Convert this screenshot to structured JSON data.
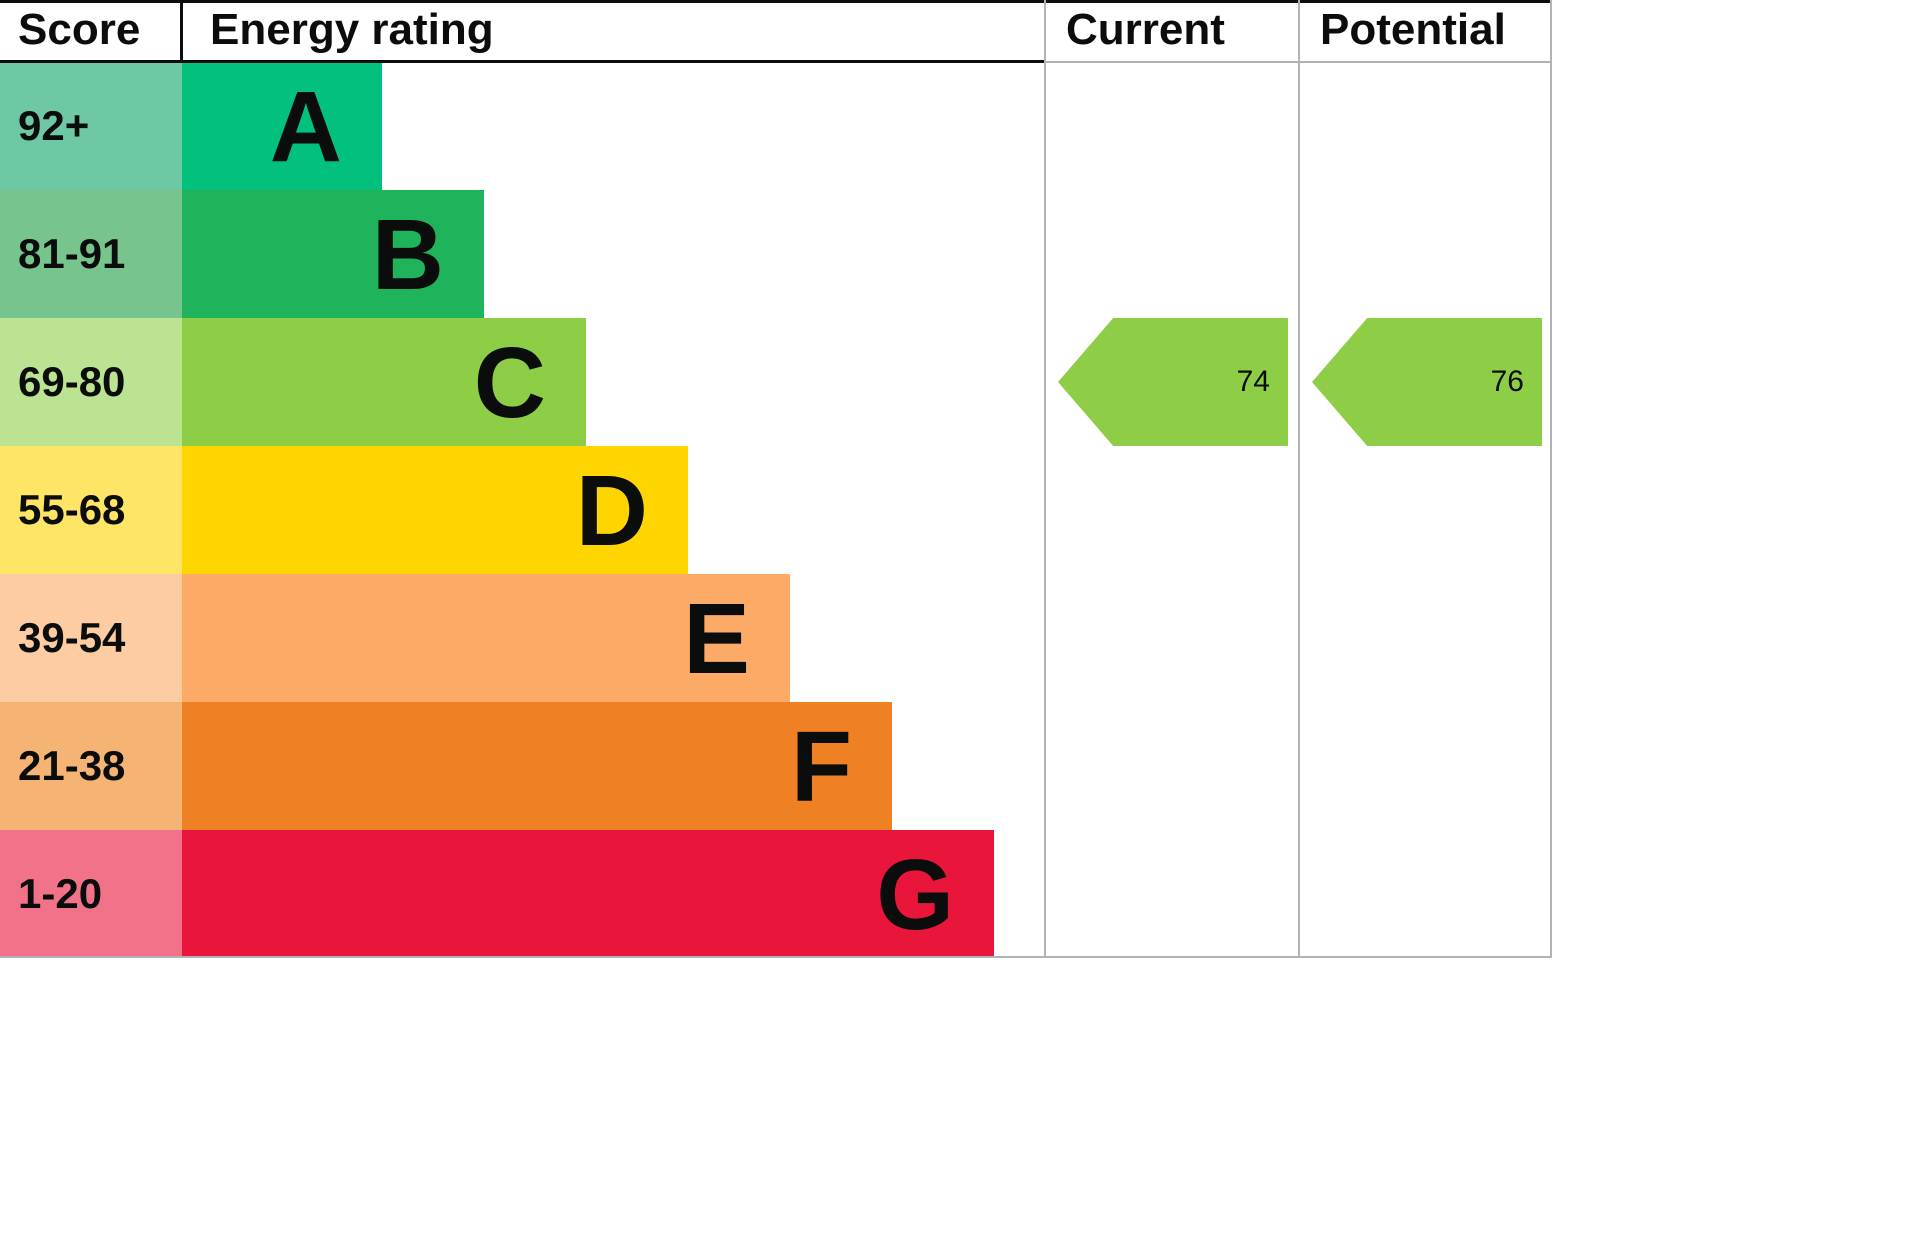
{
  "header": {
    "score": "Score",
    "energy_rating": "Energy rating",
    "current": "Current",
    "potential": "Potential"
  },
  "bands": [
    {
      "range": "92+",
      "letter": "A",
      "color": "#02c17d",
      "tint": "#6ec8a3"
    },
    {
      "range": "81-91",
      "letter": "B",
      "color": "#1fb35b",
      "tint": "#77c48e"
    },
    {
      "range": "69-80",
      "letter": "C",
      "color": "#8dce46",
      "tint": "#bbe391"
    },
    {
      "range": "55-68",
      "letter": "D",
      "color": "#ffd500",
      "tint": "#ffe566"
    },
    {
      "range": "39-54",
      "letter": "E",
      "color": "#fcaa65",
      "tint": "#fdcca3"
    },
    {
      "range": "21-38",
      "letter": "F",
      "color": "#ef8023",
      "tint": "#f5b374"
    },
    {
      "range": "1-20",
      "letter": "G",
      "color": "#e9153b",
      "tint": "#f27389"
    }
  ],
  "markers": {
    "current": {
      "label": "74",
      "band": "C",
      "color": "#8dce46"
    },
    "potential": {
      "label": "76",
      "band": "C",
      "color": "#8dce46"
    }
  },
  "chart_data": {
    "type": "bar",
    "title": "Energy rating",
    "categories": [
      "A",
      "B",
      "C",
      "D",
      "E",
      "F",
      "G"
    ],
    "score_ranges": [
      "92+",
      "81-91",
      "69-80",
      "55-68",
      "39-54",
      "21-38",
      "1-20"
    ],
    "band_colors": [
      "#02c17d",
      "#1fb35b",
      "#8dce46",
      "#ffd500",
      "#fcaa65",
      "#ef8023",
      "#e9153b"
    ],
    "series": [
      {
        "name": "Current",
        "value": 74,
        "band": "C"
      },
      {
        "name": "Potential",
        "value": 76,
        "band": "C"
      }
    ],
    "xlabel": "",
    "ylabel": "Score",
    "legend_position": "none",
    "grid": false
  }
}
